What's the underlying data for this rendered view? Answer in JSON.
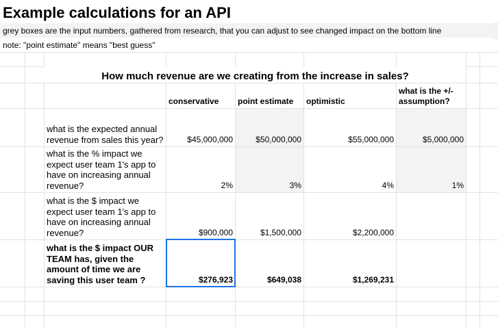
{
  "title": "Example calculations for an API",
  "notes": [
    "grey boxes are the input numbers, gathered from research, that you can adjust to see changed impact on the bottom line",
    "note: \"point estimate\" means \"best guess\""
  ],
  "table": {
    "title": "How much revenue are we creating from the increase in sales?",
    "columns": [
      "conservative",
      "point estimate",
      "optimistic",
      "what is the +/- assumption?"
    ],
    "rows": [
      {
        "label": "what is the expected annual revenue from sales this year?",
        "values": [
          "$45,000,000",
          "$50,000,000",
          "$55,000,000",
          "$5,000,000"
        ]
      },
      {
        "label": "what is the % impact we expect user team 1's app to have on increasing annual revenue?",
        "values": [
          "2%",
          "3%",
          "4%",
          "1%"
        ]
      },
      {
        "label": "what is the $ impact we expect user team 1's app to have on increasing annual revenue?",
        "values": [
          "$900,000",
          "$1,500,000",
          "$2,200,000"
        ]
      },
      {
        "label": "what is the $ impact OUR TEAM has, given the amount of time we are saving this user team ?",
        "values": [
          "$276,923",
          "$649,038",
          "$1,269,231"
        ]
      }
    ]
  }
}
